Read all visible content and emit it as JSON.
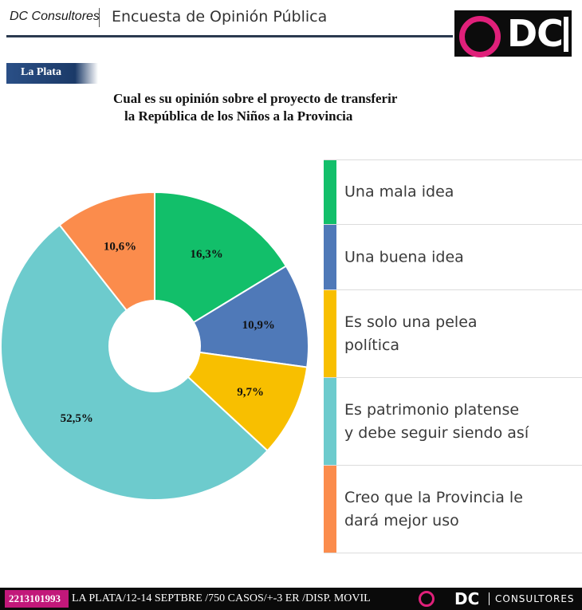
{
  "header": {
    "brand": "DC Consultores",
    "title": "Encuesta de Opinión Pública",
    "logo_text": "DC"
  },
  "tag": "La Plata",
  "chart_data": {
    "type": "pie",
    "title": "Cual es su opinión sobre el proyecto de transferir la República de los Niños a la Provincia",
    "title_lines": [
      "Cual es su opinión sobre el proyecto de transferir",
      "la República de los Niños a la Provincia"
    ],
    "donut": true,
    "slices": [
      {
        "label": "Una mala idea",
        "value": 16.3,
        "display": "16,3%",
        "color": "#12bf6a"
      },
      {
        "label": "Una buena idea",
        "value": 10.9,
        "display": "10,9%",
        "color": "#4f79b8"
      },
      {
        "label": "Es solo una pelea política",
        "value": 9.7,
        "display": "9,7%",
        "color": "#f8bf00"
      },
      {
        "label": "Es patrimonio platense y debe seguir siendo así",
        "value": 52.5,
        "display": "52,5%",
        "color": "#6dcbcd"
      },
      {
        "label": "Creo que la Provincia le dará mejor uso",
        "value": 10.6,
        "display": "10,6%",
        "color": "#fb8c4c"
      }
    ],
    "legend_position": "right"
  },
  "legend": [
    {
      "text": "Una mala idea"
    },
    {
      "text": "Una buena idea"
    },
    {
      "text": "Es solo una pelea\npolítica"
    },
    {
      "text": "Es patrimonio platense\ny debe seguir siendo así"
    },
    {
      "text": "Creo que la Provincia le\ndará mejor uso"
    }
  ],
  "footer": {
    "phone": "2213101993",
    "info": "LA PLATA/12-14 SEPTBRE /750 CASOS/+-3 ER /DISP. MOVIL",
    "logo_text": "DC",
    "logo_sub": "CONSULTORES"
  }
}
